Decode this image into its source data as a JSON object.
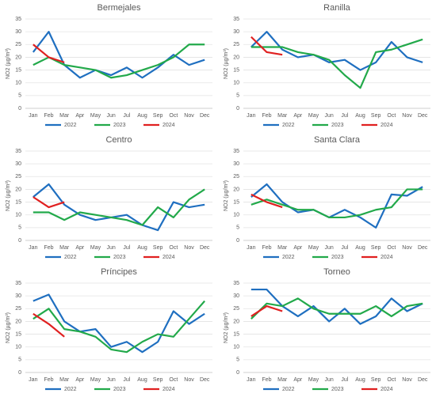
{
  "chart_data": [
    {
      "type": "line",
      "title": "Bermejales",
      "y_label": "NO2 (µg/m³)",
      "categories": [
        "Jan",
        "Feb",
        "Mar",
        "Apr",
        "May",
        "Jun",
        "Jul",
        "Aug",
        "Sep",
        "Oct",
        "Nov",
        "Dec"
      ],
      "ylim": [
        0,
        35
      ],
      "yticks": [
        0,
        5,
        10,
        15,
        20,
        25,
        30,
        35
      ],
      "grid": true,
      "series": [
        {
          "name": "2022",
          "color": "#1f6fc0",
          "values": [
            22,
            30,
            17,
            12,
            15,
            13,
            16,
            12,
            16,
            21,
            17,
            19
          ]
        },
        {
          "name": "2023",
          "color": "#22a94a",
          "values": [
            17,
            20,
            17,
            16,
            15,
            12,
            13,
            15,
            17,
            20,
            25,
            25
          ]
        },
        {
          "name": "2024",
          "color": "#e02020",
          "values": [
            25,
            20,
            18,
            null,
            null,
            null,
            null,
            null,
            null,
            null,
            null,
            null
          ]
        }
      ]
    },
    {
      "type": "line",
      "title": "Ranilla",
      "y_label": "NO2 (µg/m³)",
      "categories": [
        "Jan",
        "Feb",
        "Mar",
        "Apr",
        "May",
        "Jun",
        "Jul",
        "Aug",
        "Sep",
        "Oct",
        "Nov",
        "Dec"
      ],
      "ylim": [
        0,
        35
      ],
      "yticks": [
        0,
        5,
        10,
        15,
        20,
        25,
        30,
        35
      ],
      "grid": true,
      "series": [
        {
          "name": "2022",
          "color": "#1f6fc0",
          "values": [
            24,
            30,
            23,
            20,
            21,
            18,
            19,
            15,
            18,
            26,
            20,
            18
          ]
        },
        {
          "name": "2023",
          "color": "#22a94a",
          "values": [
            24,
            24,
            24,
            22,
            21,
            19,
            13,
            8,
            22,
            23,
            25,
            27
          ]
        },
        {
          "name": "2024",
          "color": "#e02020",
          "values": [
            28,
            22,
            21,
            null,
            null,
            null,
            null,
            null,
            null,
            null,
            null,
            null
          ]
        }
      ]
    },
    {
      "type": "line",
      "title": "Centro",
      "y_label": "NO2 (µg/m³)",
      "categories": [
        "Jan",
        "Feb",
        "Mar",
        "Apr",
        "May",
        "Jun",
        "Jul",
        "Aug",
        "Sep",
        "Oct",
        "Nov",
        "Dec"
      ],
      "ylim": [
        0,
        35
      ],
      "yticks": [
        0,
        5,
        10,
        15,
        20,
        25,
        30,
        35
      ],
      "grid": true,
      "series": [
        {
          "name": "2022",
          "color": "#1f6fc0",
          "values": [
            17,
            22,
            14,
            10,
            8,
            9,
            10,
            6,
            4,
            15,
            13,
            14
          ]
        },
        {
          "name": "2023",
          "color": "#22a94a",
          "values": [
            11,
            11,
            8,
            11,
            10,
            9,
            8,
            6,
            13,
            9,
            16,
            20
          ]
        },
        {
          "name": "2024",
          "color": "#e02020",
          "values": [
            17,
            13,
            15,
            null,
            null,
            null,
            null,
            null,
            null,
            null,
            null,
            null
          ]
        }
      ]
    },
    {
      "type": "line",
      "title": "Santa Clara",
      "y_label": "NO2 (µg/m³)",
      "categories": [
        "Jan",
        "Feb",
        "Mar",
        "Apr",
        "May",
        "Jun",
        "Jul",
        "Aug",
        "Sep",
        "Oct",
        "Nov",
        "Dec"
      ],
      "ylim": [
        0,
        35
      ],
      "yticks": [
        0,
        5,
        10,
        15,
        20,
        25,
        30,
        35
      ],
      "grid": true,
      "series": [
        {
          "name": "2022",
          "color": "#1f6fc0",
          "values": [
            17,
            22,
            15,
            11,
            12,
            9,
            12,
            9,
            5,
            18,
            17.5,
            21
          ]
        },
        {
          "name": "2023",
          "color": "#22a94a",
          "values": [
            14,
            16,
            14,
            12,
            12,
            9,
            9,
            10,
            12,
            13,
            20,
            20
          ]
        },
        {
          "name": "2024",
          "color": "#e02020",
          "values": [
            18,
            15,
            13,
            null,
            null,
            null,
            null,
            null,
            null,
            null,
            null,
            null
          ]
        }
      ]
    },
    {
      "type": "line",
      "title": "Príncipes",
      "y_label": "NO2 (µg/m³)",
      "categories": [
        "Jan",
        "Feb",
        "Mar",
        "Apr",
        "May",
        "Jun",
        "Jul",
        "Aug",
        "Sep",
        "Oct",
        "Nov",
        "Dec"
      ],
      "ylim": [
        0,
        35
      ],
      "yticks": [
        0,
        5,
        10,
        15,
        20,
        25,
        30,
        35
      ],
      "grid": true,
      "series": [
        {
          "name": "2022",
          "color": "#1f6fc0",
          "values": [
            28,
            30.5,
            20,
            16,
            17,
            10,
            12,
            8,
            12,
            24,
            19,
            23
          ]
        },
        {
          "name": "2023",
          "color": "#22a94a",
          "values": [
            21,
            25,
            17,
            16,
            14,
            9,
            8,
            12,
            15,
            14,
            21,
            28
          ]
        },
        {
          "name": "2024",
          "color": "#e02020",
          "values": [
            23,
            19,
            14,
            null,
            null,
            null,
            null,
            null,
            null,
            null,
            null,
            null
          ]
        }
      ]
    },
    {
      "type": "line",
      "title": "Torneo",
      "y_label": "NO2 (µg/m³)",
      "categories": [
        "Jan",
        "Feb",
        "Mar",
        "Apr",
        "May",
        "Jun",
        "Jul",
        "Aug",
        "Sep",
        "Oct",
        "Nov",
        "Dec"
      ],
      "ylim": [
        0,
        35
      ],
      "yticks": [
        0,
        5,
        10,
        15,
        20,
        25,
        30,
        35
      ],
      "grid": true,
      "series": [
        {
          "name": "2022",
          "color": "#1f6fc0",
          "values": [
            32.5,
            32.5,
            26,
            22,
            26,
            20,
            25,
            19,
            22,
            29,
            24,
            27
          ]
        },
        {
          "name": "2023",
          "color": "#22a94a",
          "values": [
            21,
            27,
            26,
            29,
            25,
            23,
            23,
            23,
            26,
            22,
            26,
            27
          ]
        },
        {
          "name": "2024",
          "color": "#e02020",
          "values": [
            22,
            26,
            24,
            null,
            null,
            null,
            null,
            null,
            null,
            null,
            null,
            null
          ]
        }
      ]
    }
  ]
}
